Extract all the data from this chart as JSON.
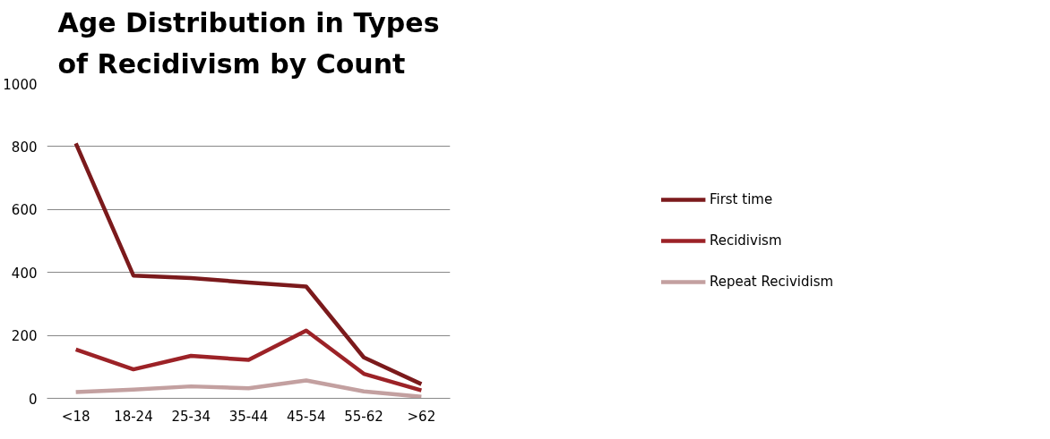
{
  "chart_data": {
    "type": "line",
    "title": "Age Distribution in Types of Recidivism by Count",
    "categories": [
      "<18",
      "18-24",
      "25-34",
      "35-44",
      "45-54",
      "55-62",
      ">62"
    ],
    "series": [
      {
        "name": "First time",
        "color": "#7b1a1c",
        "values": [
          810,
          390,
          382,
          368,
          355,
          130,
          45
        ]
      },
      {
        "name": "Recidivism",
        "color": "#9c2227",
        "values": [
          155,
          92,
          135,
          122,
          215,
          78,
          25
        ]
      },
      {
        "name": "Repeat Recividism",
        "color": "#c3a0a0",
        "values": [
          20,
          28,
          38,
          32,
          57,
          22,
          5
        ]
      }
    ],
    "ylim": [
      0,
      1000
    ],
    "yticks": [
      0,
      200,
      400,
      600,
      800,
      1000
    ],
    "grid": "y",
    "legend": "right",
    "marker": "none",
    "line_style": "solid"
  }
}
